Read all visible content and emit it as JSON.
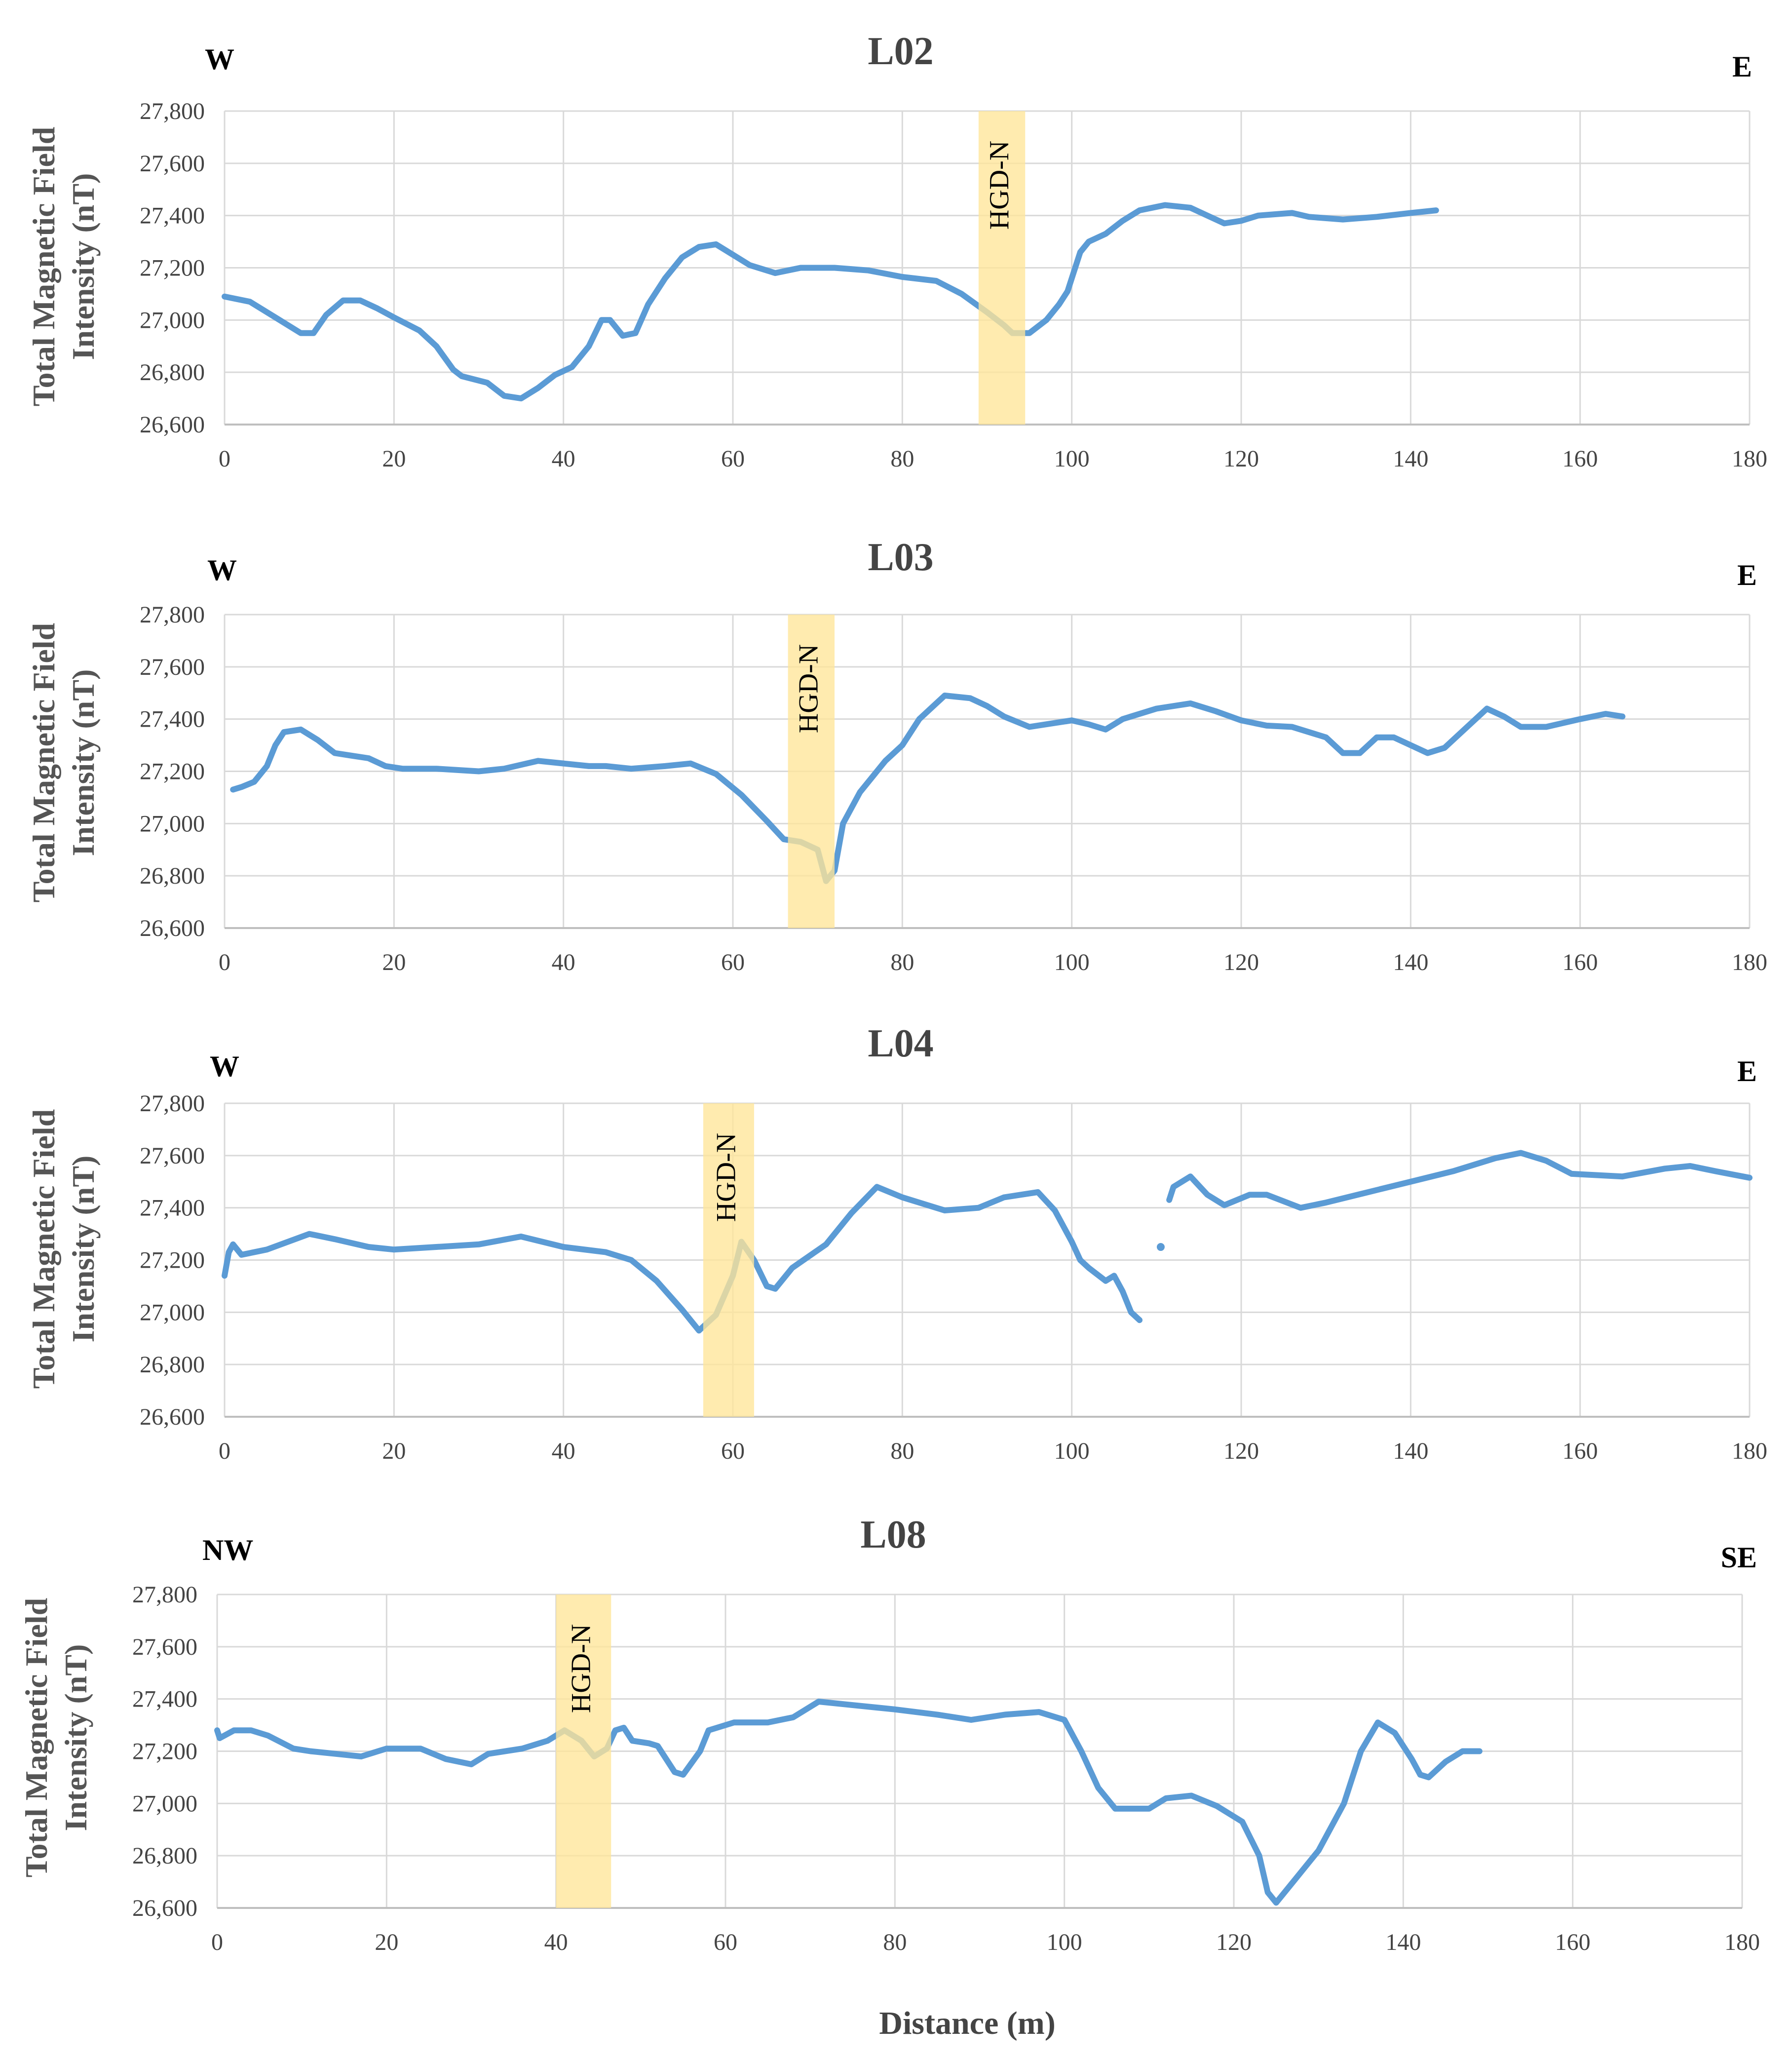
{
  "figure": {
    "xlabel": "Distance (m)",
    "series_color": "#5b9bd5",
    "band_color": "#ffe699"
  },
  "chart_data": [
    {
      "type": "line",
      "title": "L02",
      "left_direction": "W",
      "right_direction": "E",
      "ylabel_lines": [
        "Total Magnetic Field",
        "Intensity (nT)"
      ],
      "xlim": [
        0,
        180
      ],
      "ylim": [
        26600,
        27800
      ],
      "x_ticks": [
        0,
        20,
        40,
        60,
        80,
        100,
        120,
        140,
        160,
        180
      ],
      "y_ticks": [
        26600,
        26800,
        27000,
        27200,
        27400,
        27600,
        27800
      ],
      "y_tick_labels": [
        "26,600",
        "26,800",
        "27,000",
        "27,200",
        "27,400",
        "27,600",
        "27,800"
      ],
      "band": {
        "label": "HGD-N",
        "x_start": 89,
        "x_end": 94.5
      },
      "segments": [
        [
          [
            0,
            27090
          ],
          [
            3,
            27070
          ],
          [
            6,
            27010
          ],
          [
            9,
            26950
          ],
          [
            10.5,
            26950
          ],
          [
            12,
            27020
          ],
          [
            14,
            27075
          ],
          [
            16,
            27075
          ],
          [
            18,
            27045
          ],
          [
            20,
            27010
          ],
          [
            23,
            26960
          ],
          [
            25,
            26900
          ],
          [
            27,
            26810
          ],
          [
            28,
            26785
          ],
          [
            31,
            26760
          ],
          [
            33,
            26710
          ],
          [
            35,
            26700
          ],
          [
            37,
            26740
          ],
          [
            39,
            26790
          ],
          [
            41,
            26820
          ],
          [
            43,
            26900
          ],
          [
            44.5,
            27000
          ],
          [
            45.5,
            27000
          ],
          [
            47,
            26940
          ],
          [
            48.5,
            26950
          ],
          [
            50,
            27060
          ],
          [
            52,
            27160
          ],
          [
            54,
            27240
          ],
          [
            56,
            27280
          ],
          [
            58,
            27290
          ],
          [
            60,
            27250
          ],
          [
            62,
            27210
          ],
          [
            65,
            27180
          ],
          [
            68,
            27200
          ],
          [
            72,
            27200
          ],
          [
            76,
            27190
          ],
          [
            80,
            27165
          ],
          [
            84,
            27150
          ],
          [
            87,
            27100
          ],
          [
            90,
            27030
          ],
          [
            92,
            26980
          ],
          [
            93,
            26950
          ],
          [
            95,
            26950
          ],
          [
            97,
            27000
          ],
          [
            98.5,
            27060
          ],
          [
            99.5,
            27110
          ],
          [
            101,
            27260
          ],
          [
            102,
            27300
          ],
          [
            104,
            27330
          ],
          [
            106,
            27380
          ],
          [
            108,
            27420
          ],
          [
            111,
            27440
          ],
          [
            114,
            27430
          ],
          [
            116,
            27400
          ],
          [
            118,
            27370
          ],
          [
            120,
            27380
          ],
          [
            122,
            27400
          ],
          [
            126,
            27410
          ],
          [
            128,
            27395
          ],
          [
            132,
            27385
          ],
          [
            136,
            27395
          ],
          [
            140,
            27410
          ],
          [
            143,
            27420
          ]
        ]
      ]
    },
    {
      "type": "line",
      "title": "L03",
      "left_direction": "W",
      "right_direction": "E",
      "ylabel_lines": [
        "Total Magnetic Field",
        "Intensity (nT)"
      ],
      "xlim": [
        0,
        180
      ],
      "ylim": [
        26600,
        27800
      ],
      "x_ticks": [
        0,
        20,
        40,
        60,
        80,
        100,
        120,
        140,
        160,
        180
      ],
      "y_ticks": [
        26600,
        26800,
        27000,
        27200,
        27400,
        27600,
        27800
      ],
      "y_tick_labels": [
        "26,600",
        "26,800",
        "27,000",
        "27,200",
        "27,400",
        "27,600",
        "27,800"
      ],
      "band": {
        "label": "HGD-N",
        "x_start": 66.5,
        "x_end": 72
      },
      "segments": [
        [
          [
            1,
            27130
          ],
          [
            2,
            27140
          ],
          [
            3.5,
            27160
          ],
          [
            5,
            27220
          ],
          [
            6,
            27300
          ],
          [
            7,
            27350
          ],
          [
            9,
            27360
          ],
          [
            11,
            27320
          ],
          [
            13,
            27270
          ],
          [
            15,
            27260
          ],
          [
            17,
            27250
          ],
          [
            19,
            27220
          ],
          [
            21,
            27210
          ],
          [
            25,
            27210
          ],
          [
            30,
            27200
          ],
          [
            33,
            27210
          ],
          [
            37,
            27240
          ],
          [
            40,
            27230
          ],
          [
            43,
            27220
          ],
          [
            45,
            27220
          ],
          [
            48,
            27210
          ],
          [
            52,
            27220
          ],
          [
            55,
            27230
          ],
          [
            58,
            27190
          ],
          [
            61,
            27110
          ],
          [
            64,
            27010
          ],
          [
            66,
            26940
          ],
          [
            68,
            26930
          ],
          [
            70,
            26900
          ],
          [
            71,
            26780
          ],
          [
            72,
            26820
          ],
          [
            73,
            27000
          ],
          [
            75,
            27120
          ],
          [
            78,
            27240
          ],
          [
            80,
            27300
          ],
          [
            82,
            27400
          ],
          [
            85,
            27490
          ],
          [
            88,
            27480
          ],
          [
            90,
            27450
          ],
          [
            92,
            27410
          ],
          [
            95,
            27370
          ],
          [
            100,
            27395
          ],
          [
            102,
            27380
          ],
          [
            104,
            27360
          ],
          [
            106,
            27400
          ],
          [
            110,
            27440
          ],
          [
            114,
            27460
          ],
          [
            117,
            27430
          ],
          [
            120,
            27395
          ],
          [
            123,
            27375
          ],
          [
            126,
            27370
          ],
          [
            130,
            27330
          ],
          [
            132,
            27270
          ],
          [
            134,
            27270
          ],
          [
            136,
            27330
          ],
          [
            138,
            27330
          ],
          [
            140,
            27300
          ],
          [
            142,
            27270
          ],
          [
            144,
            27290
          ],
          [
            146,
            27350
          ],
          [
            149,
            27440
          ],
          [
            151,
            27410
          ],
          [
            153,
            27370
          ],
          [
            156,
            27370
          ],
          [
            160,
            27400
          ],
          [
            163,
            27420
          ],
          [
            165,
            27410
          ]
        ]
      ]
    },
    {
      "type": "line",
      "title": "L04",
      "left_direction": "W",
      "right_direction": "E",
      "ylabel_lines": [
        "Total Magnetic Field",
        "Intensity (nT)"
      ],
      "xlim": [
        0,
        180
      ],
      "ylim": [
        26600,
        27800
      ],
      "x_ticks": [
        0,
        20,
        40,
        60,
        80,
        100,
        120,
        140,
        160,
        180
      ],
      "y_ticks": [
        26600,
        26800,
        27000,
        27200,
        27400,
        27600,
        27800
      ],
      "y_tick_labels": [
        "26,600",
        "26,800",
        "27,000",
        "27,200",
        "27,400",
        "27,600",
        "27,800"
      ],
      "band": {
        "label": "HGD-N",
        "x_start": 56.5,
        "x_end": 62.5
      },
      "segments": [
        [
          [
            0,
            27140
          ],
          [
            0.5,
            27230
          ],
          [
            1,
            27260
          ],
          [
            2,
            27220
          ],
          [
            5,
            27240
          ],
          [
            10,
            27300
          ],
          [
            13,
            27280
          ],
          [
            17,
            27250
          ],
          [
            20,
            27240
          ],
          [
            25,
            27250
          ],
          [
            30,
            27260
          ],
          [
            35,
            27290
          ],
          [
            40,
            27250
          ],
          [
            45,
            27230
          ],
          [
            48,
            27200
          ],
          [
            51,
            27120
          ],
          [
            54,
            27010
          ],
          [
            56,
            26930
          ],
          [
            58,
            26990
          ],
          [
            60,
            27140
          ],
          [
            61,
            27270
          ],
          [
            62.5,
            27200
          ],
          [
            64,
            27100
          ],
          [
            65,
            27090
          ],
          [
            67,
            27170
          ],
          [
            71,
            27260
          ],
          [
            74,
            27380
          ],
          [
            77,
            27480
          ],
          [
            80,
            27440
          ],
          [
            85,
            27390
          ],
          [
            89,
            27400
          ],
          [
            92,
            27440
          ],
          [
            96,
            27460
          ],
          [
            98,
            27390
          ],
          [
            100,
            27270
          ],
          [
            101,
            27200
          ],
          [
            102,
            27170
          ],
          [
            104,
            27120
          ],
          [
            105,
            27140
          ],
          [
            106,
            27080
          ],
          [
            107,
            27000
          ],
          [
            108,
            26970
          ]
        ],
        [
          [
            110.5,
            27250
          ]
        ],
        [
          [
            111.5,
            27430
          ],
          [
            112,
            27480
          ],
          [
            114,
            27520
          ],
          [
            116,
            27450
          ],
          [
            118,
            27410
          ],
          [
            121,
            27450
          ],
          [
            123,
            27450
          ],
          [
            127,
            27400
          ],
          [
            130,
            27420
          ],
          [
            135,
            27460
          ],
          [
            140,
            27500
          ],
          [
            145,
            27540
          ],
          [
            150,
            27590
          ],
          [
            153,
            27610
          ],
          [
            156,
            27580
          ],
          [
            159,
            27530
          ],
          [
            165,
            27520
          ],
          [
            170,
            27550
          ],
          [
            173,
            27560
          ],
          [
            176,
            27540
          ],
          [
            180,
            27515
          ]
        ]
      ]
    },
    {
      "type": "line",
      "title": "L08",
      "left_direction": "NW",
      "right_direction": "SE",
      "ylabel_lines": [
        "Total Magnetic Field",
        "Intensity (nT)"
      ],
      "xlim": [
        0,
        180
      ],
      "ylim": [
        26600,
        27800
      ],
      "x_ticks": [
        0,
        20,
        40,
        60,
        80,
        100,
        120,
        140,
        160,
        180
      ],
      "y_ticks": [
        26600,
        26800,
        27000,
        27200,
        27400,
        27600,
        27800
      ],
      "y_tick_labels": [
        "26,600",
        "26,800",
        "27,000",
        "27,200",
        "27,400",
        "27,600",
        "27,800"
      ],
      "band": {
        "label": "HGD-N",
        "x_start": 40,
        "x_end": 46.5
      },
      "segments": [
        [
          [
            0,
            27280
          ],
          [
            0.3,
            27250
          ],
          [
            2,
            27280
          ],
          [
            4,
            27280
          ],
          [
            6,
            27260
          ],
          [
            9,
            27210
          ],
          [
            11,
            27200
          ],
          [
            14,
            27190
          ],
          [
            17,
            27180
          ],
          [
            20,
            27210
          ],
          [
            24,
            27210
          ],
          [
            27,
            27170
          ],
          [
            30,
            27150
          ],
          [
            32,
            27190
          ],
          [
            36,
            27210
          ],
          [
            39,
            27240
          ],
          [
            41,
            27280
          ],
          [
            43,
            27240
          ],
          [
            44.5,
            27180
          ],
          [
            46,
            27210
          ],
          [
            47,
            27280
          ],
          [
            48,
            27290
          ],
          [
            49,
            27240
          ],
          [
            51,
            27230
          ],
          [
            52,
            27220
          ],
          [
            54,
            27120
          ],
          [
            55,
            27110
          ],
          [
            57,
            27200
          ],
          [
            58,
            27280
          ],
          [
            61,
            27310
          ],
          [
            65,
            27310
          ],
          [
            68,
            27330
          ],
          [
            71,
            27390
          ],
          [
            74,
            27380
          ],
          [
            80,
            27360
          ],
          [
            85,
            27340
          ],
          [
            89,
            27320
          ],
          [
            93,
            27340
          ],
          [
            97,
            27350
          ],
          [
            100,
            27320
          ],
          [
            102,
            27200
          ],
          [
            104,
            27060
          ],
          [
            106,
            26980
          ],
          [
            110,
            26980
          ],
          [
            112,
            27020
          ],
          [
            115,
            27030
          ],
          [
            118,
            26990
          ],
          [
            121,
            26930
          ],
          [
            123,
            26800
          ],
          [
            124,
            26660
          ],
          [
            125,
            26620
          ],
          [
            127,
            26700
          ],
          [
            130,
            26820
          ],
          [
            133,
            27000
          ],
          [
            135,
            27200
          ],
          [
            137,
            27310
          ],
          [
            139,
            27270
          ],
          [
            141,
            27170
          ],
          [
            142,
            27110
          ],
          [
            143,
            27100
          ],
          [
            145,
            27160
          ],
          [
            147,
            27200
          ],
          [
            149,
            27200
          ]
        ]
      ]
    }
  ]
}
